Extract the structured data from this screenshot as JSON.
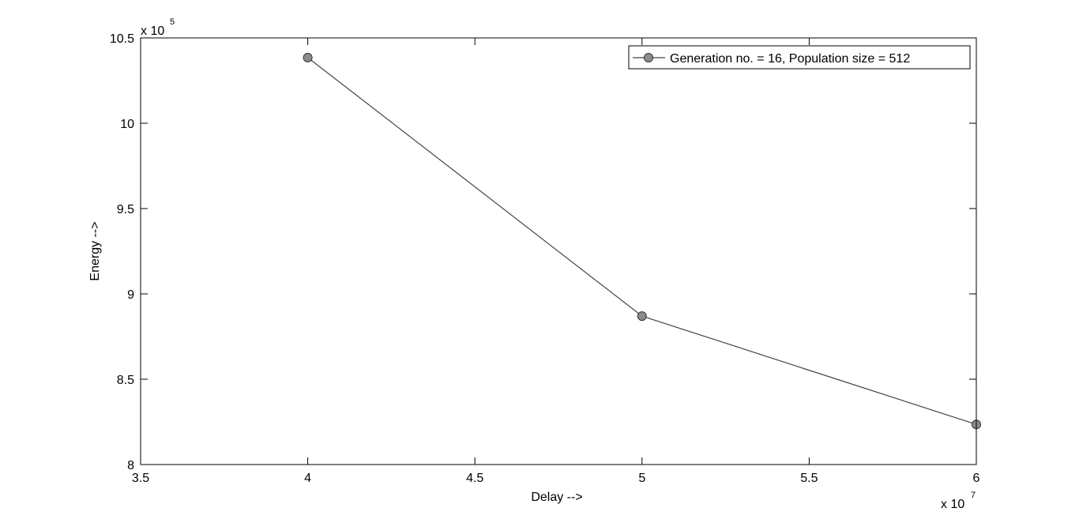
{
  "chart_data": {
    "type": "line",
    "xlabel": "Delay -->",
    "ylabel": "Energy -->",
    "x_exponent_label": "x 10",
    "x_exponent": "7",
    "y_exponent_label": "x 10",
    "y_exponent": "5",
    "xlim": [
      35000000,
      60000000
    ],
    "ylim": [
      800000,
      1050000
    ],
    "x_ticks": [
      35000000,
      40000000,
      45000000,
      50000000,
      55000000,
      60000000
    ],
    "x_tick_labels": [
      "3.5",
      "4",
      "4.5",
      "5",
      "5.5",
      "6"
    ],
    "y_ticks": [
      800000,
      850000,
      900000,
      950000,
      1000000,
      1050000
    ],
    "y_tick_labels": [
      "8",
      "8.5",
      "9",
      "9.5",
      "10",
      "10.5"
    ],
    "grid": false,
    "legend_position": "top-right",
    "series": [
      {
        "name": "Generation no. = 16, Population size = 512",
        "x": [
          40000000,
          50000000,
          60000000
        ],
        "y": [
          1038500,
          887000,
          823500
        ],
        "line_color": "#444444",
        "marker": "circle",
        "marker_fill": "#8c8c8c"
      }
    ]
  }
}
